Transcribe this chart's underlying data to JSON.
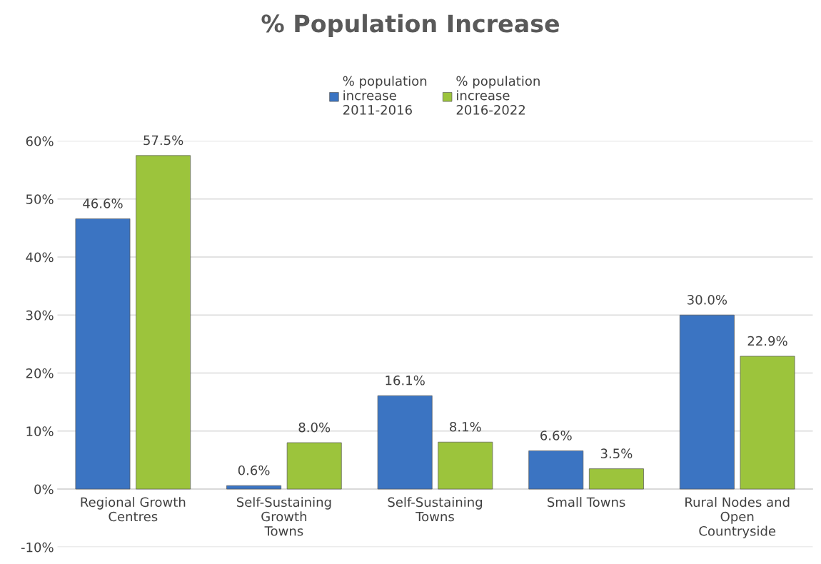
{
  "chart_data": {
    "type": "bar",
    "title": "% Population Increase",
    "categories": [
      "Regional Growth\nCentres",
      "Self-Sustaining\nGrowth\nTowns",
      "Self-Sustaining\nTowns",
      "Small Towns",
      "Rural Nodes and\nOpen\nCountryside"
    ],
    "series": [
      {
        "name": "% population\nincrease\n2011-2016",
        "color": "#3b74c2",
        "values": [
          46.6,
          0.6,
          16.1,
          6.6,
          30.0
        ],
        "value_labels": [
          "46.6%",
          "0.6%",
          "16.1%",
          "6.6%",
          "30.0%"
        ]
      },
      {
        "name": "% population\nincrease\n2016-2022",
        "color": "#9cc43c",
        "values": [
          57.5,
          8.0,
          8.1,
          3.5,
          22.9
        ],
        "value_labels": [
          "57.5%",
          "8.0%",
          "8.1%",
          "3.5%",
          "22.9%"
        ]
      }
    ],
    "ylim": [
      -10,
      60
    ],
    "yticks": [
      {
        "value": -10,
        "label": "-10%"
      },
      {
        "value": 0,
        "label": "0%"
      },
      {
        "value": 10,
        "label": "10%"
      },
      {
        "value": 20,
        "label": "20%"
      },
      {
        "value": 30,
        "label": "30%"
      },
      {
        "value": 40,
        "label": "40%"
      },
      {
        "value": 50,
        "label": "50%"
      },
      {
        "value": 60,
        "label": "60%"
      }
    ],
    "grid": "y",
    "legend": "top"
  }
}
